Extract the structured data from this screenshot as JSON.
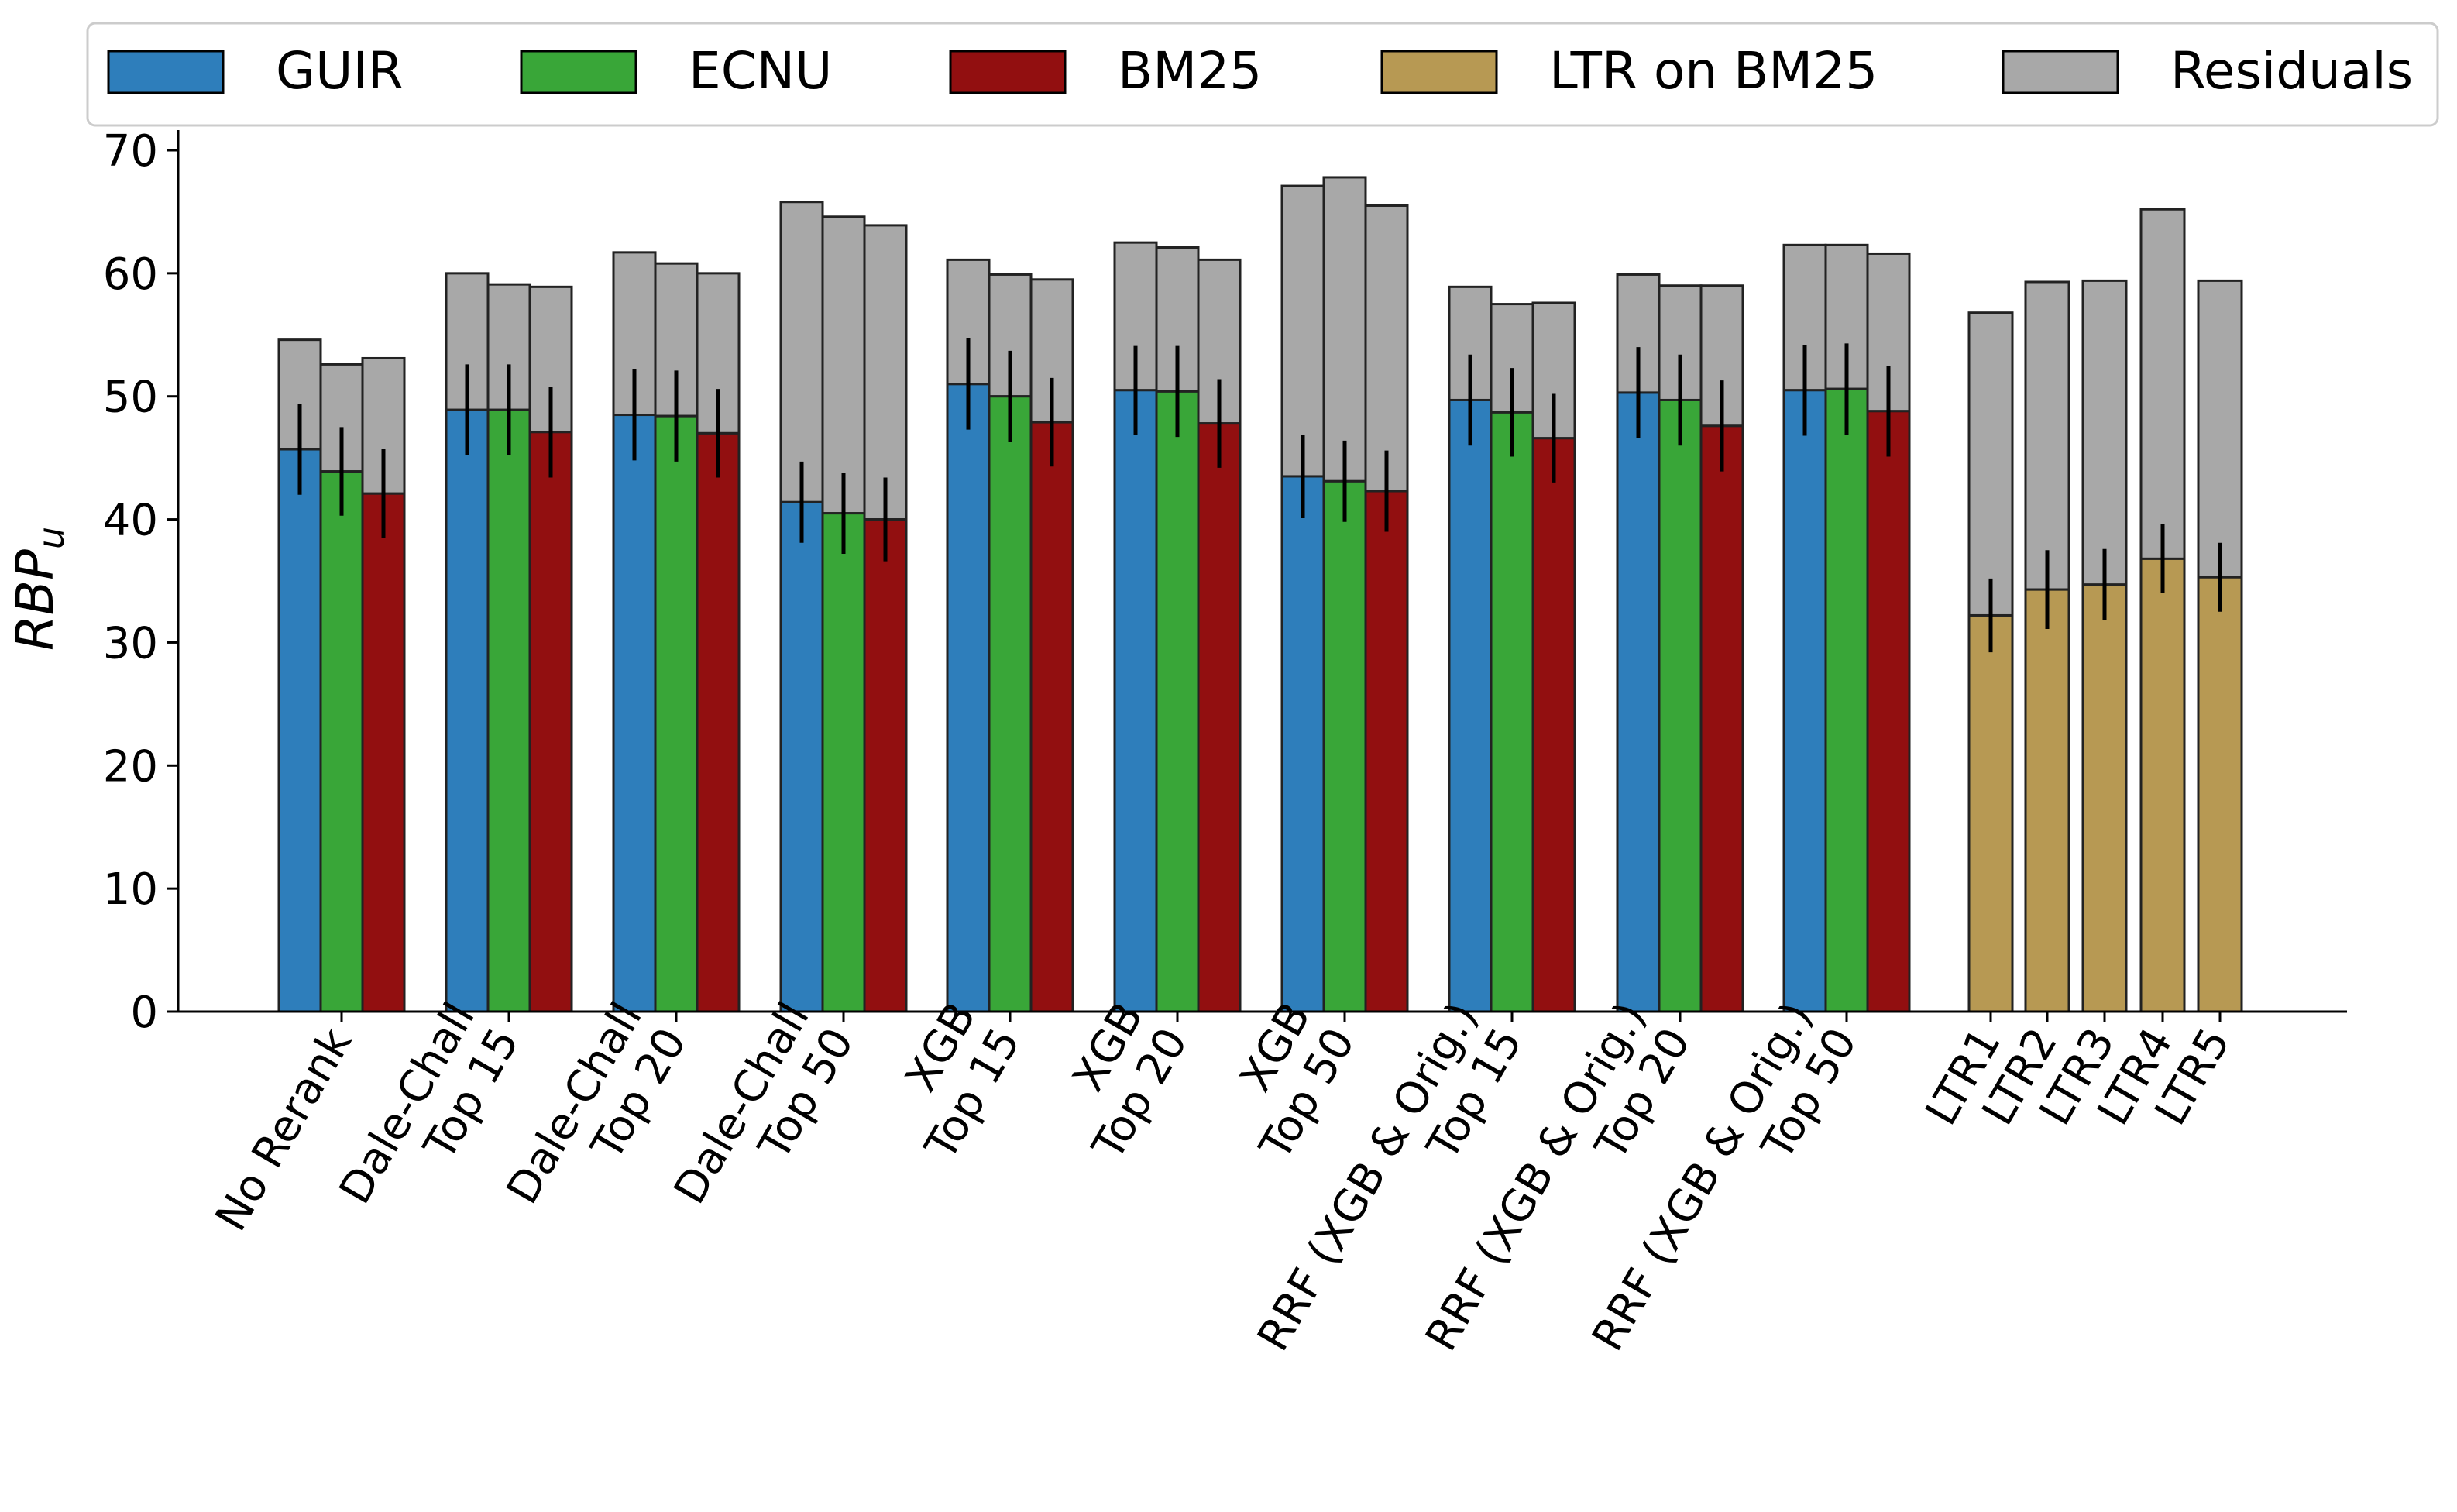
{
  "chart_data": {
    "type": "bar",
    "ylabel": "RBP",
    "ylabel_subscript": "u",
    "ylim": [
      0,
      70
    ],
    "yticks": [
      0,
      10,
      20,
      30,
      40,
      50,
      60,
      70
    ],
    "legend_placement": "top, above plot",
    "legend": [
      {
        "name": "GUIR",
        "color": "#2e7ebb"
      },
      {
        "name": "ECNU",
        "color": "#39a638"
      },
      {
        "name": "BM25",
        "color": "#920f10"
      },
      {
        "name": "LTR on BM25",
        "color": "#b79953"
      },
      {
        "name": "Residuals",
        "color": "#a8a8a8"
      }
    ],
    "groups": [
      {
        "label": [
          "No Rerank"
        ],
        "bars": [
          {
            "series": "GUIR",
            "value": 45.7,
            "total": 54.6,
            "err": 3.7
          },
          {
            "series": "ECNU",
            "value": 43.9,
            "total": 52.6,
            "err": 3.6
          },
          {
            "series": "BM25",
            "value": 42.1,
            "total": 53.1,
            "err": 3.6
          }
        ]
      },
      {
        "label": [
          "Dale-Chall",
          "Top 15"
        ],
        "bars": [
          {
            "series": "GUIR",
            "value": 48.9,
            "total": 60.0,
            "err": 3.7
          },
          {
            "series": "ECNU",
            "value": 48.9,
            "total": 59.1,
            "err": 3.7
          },
          {
            "series": "BM25",
            "value": 47.1,
            "total": 58.9,
            "err": 3.7
          }
        ]
      },
      {
        "label": [
          "Dale-Chall",
          "Top 20"
        ],
        "bars": [
          {
            "series": "GUIR",
            "value": 48.5,
            "total": 61.7,
            "err": 3.7
          },
          {
            "series": "ECNU",
            "value": 48.4,
            "total": 60.8,
            "err": 3.7
          },
          {
            "series": "BM25",
            "value": 47.0,
            "total": 60.0,
            "err": 3.6
          }
        ]
      },
      {
        "label": [
          "Dale-Chall",
          "Top 50"
        ],
        "bars": [
          {
            "series": "GUIR",
            "value": 41.4,
            "total": 65.8,
            "err": 3.3
          },
          {
            "series": "ECNU",
            "value": 40.5,
            "total": 64.6,
            "err": 3.3
          },
          {
            "series": "BM25",
            "value": 40.0,
            "total": 63.9,
            "err": 3.4
          }
        ]
      },
      {
        "label": [
          "XGB",
          "Top 15"
        ],
        "bars": [
          {
            "series": "GUIR",
            "value": 51.0,
            "total": 61.1,
            "err": 3.7
          },
          {
            "series": "ECNU",
            "value": 50.0,
            "total": 59.9,
            "err": 3.7
          },
          {
            "series": "BM25",
            "value": 47.9,
            "total": 59.5,
            "err": 3.6
          }
        ]
      },
      {
        "label": [
          "XGB",
          "Top 20"
        ],
        "bars": [
          {
            "series": "GUIR",
            "value": 50.5,
            "total": 62.5,
            "err": 3.6
          },
          {
            "series": "ECNU",
            "value": 50.4,
            "total": 62.1,
            "err": 3.7
          },
          {
            "series": "BM25",
            "value": 47.8,
            "total": 61.1,
            "err": 3.6
          }
        ]
      },
      {
        "label": [
          "XGB",
          "Top 50"
        ],
        "bars": [
          {
            "series": "GUIR",
            "value": 43.5,
            "total": 67.1,
            "err": 3.4
          },
          {
            "series": "ECNU",
            "value": 43.1,
            "total": 67.8,
            "err": 3.3
          },
          {
            "series": "BM25",
            "value": 42.3,
            "total": 65.5,
            "err": 3.3
          }
        ]
      },
      {
        "label": [
          "RRF (XGB & Orig.)",
          "Top 15"
        ],
        "bars": [
          {
            "series": "GUIR",
            "value": 49.7,
            "total": 58.9,
            "err": 3.7
          },
          {
            "series": "ECNU",
            "value": 48.7,
            "total": 57.5,
            "err": 3.6
          },
          {
            "series": "BM25",
            "value": 46.6,
            "total": 57.6,
            "err": 3.6
          }
        ]
      },
      {
        "label": [
          "RRF (XGB & Orig.)",
          "Top 20"
        ],
        "bars": [
          {
            "series": "GUIR",
            "value": 50.3,
            "total": 59.9,
            "err": 3.7
          },
          {
            "series": "ECNU",
            "value": 49.7,
            "total": 59.0,
            "err": 3.7
          },
          {
            "series": "BM25",
            "value": 47.6,
            "total": 59.0,
            "err": 3.7
          }
        ]
      },
      {
        "label": [
          "RRF (XGB & Orig.)",
          "Top 50"
        ],
        "bars": [
          {
            "series": "GUIR",
            "value": 50.5,
            "total": 62.3,
            "err": 3.7
          },
          {
            "series": "ECNU",
            "value": 50.6,
            "total": 62.3,
            "err": 3.7
          },
          {
            "series": "BM25",
            "value": 48.8,
            "total": 61.6,
            "err": 3.7
          }
        ]
      },
      {
        "label": [
          "LTR1"
        ],
        "bars": [
          {
            "series": "LTR on BM25",
            "value": 32.2,
            "total": 56.8,
            "err": 3.0
          }
        ]
      },
      {
        "label": [
          "LTR2"
        ],
        "bars": [
          {
            "series": "LTR on BM25",
            "value": 34.3,
            "total": 59.3,
            "err": 3.2
          }
        ]
      },
      {
        "label": [
          "LTR3"
        ],
        "bars": [
          {
            "series": "LTR on BM25",
            "value": 34.7,
            "total": 59.4,
            "err": 2.9
          }
        ]
      },
      {
        "label": [
          "LTR4"
        ],
        "bars": [
          {
            "series": "LTR on BM25",
            "value": 36.8,
            "total": 65.2,
            "err": 2.8
          }
        ]
      },
      {
        "label": [
          "LTR5"
        ],
        "bars": [
          {
            "series": "LTR on BM25",
            "value": 35.3,
            "total": 59.4,
            "err": 2.8
          }
        ]
      }
    ]
  }
}
